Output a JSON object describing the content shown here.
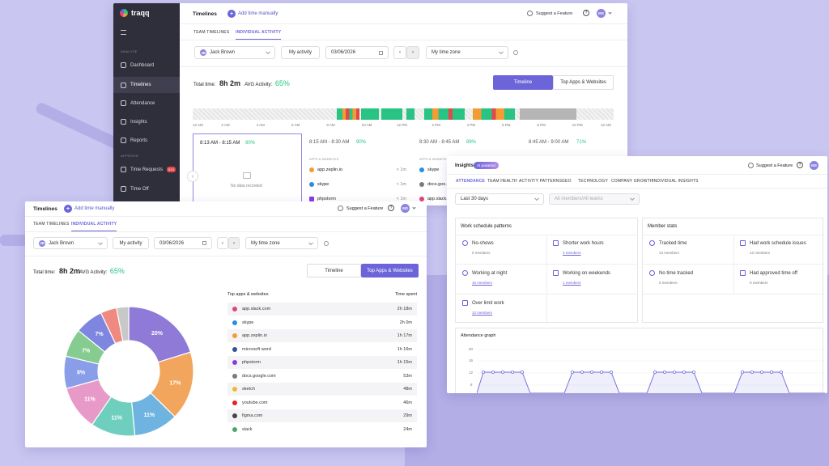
{
  "colors": {
    "accent": "#6c65d9",
    "green": "#29c384",
    "sidebar": "#2f2f3b",
    "background": "#c9c6f1"
  },
  "back": {
    "brand": "traqq",
    "header": {
      "title": "Timelines",
      "add_time": "Add time manually",
      "suggest": "Suggest a Feature",
      "avatar": "MS"
    },
    "sidebar": {
      "section_analyze": "ANALYZE",
      "section_approve": "APPROVE",
      "items": [
        {
          "label": "Dashboard",
          "icon": "dashboard-icon"
        },
        {
          "label": "Timelines",
          "icon": "timelines-icon"
        },
        {
          "label": "Attendance",
          "icon": "attendance-icon"
        },
        {
          "label": "Insights",
          "icon": "insights-icon"
        },
        {
          "label": "Reports",
          "icon": "reports-icon"
        },
        {
          "label": "Time Requests",
          "icon": "time-requests-icon",
          "badge": "574"
        },
        {
          "label": "Time Off",
          "icon": "time-off-icon"
        }
      ]
    },
    "tabs": [
      "TEAM TIMELINES",
      "INDIVIDUAL ACTIVITY"
    ],
    "filters": {
      "avatar": "JB",
      "user": "Jack Brown",
      "my_activity": "My activity",
      "date": "03/06/2026",
      "timezone": "My time zone"
    },
    "totals": {
      "total_label": "Total time:",
      "total_value": "8h 2m",
      "avg_label": "AVG Activity:",
      "avg_value": "65%"
    },
    "view_buttons": {
      "timeline": "Timeline",
      "apps": "Top Apps & Websites"
    },
    "hours": [
      "12 AM",
      "2 AM",
      "4 AM",
      "6 AM",
      "8 AM",
      "10 AM",
      "12 PM",
      "2 PM",
      "4 PM",
      "6 PM",
      "8 PM",
      "10 PM",
      "12 AM"
    ],
    "slots": [
      {
        "time": "8:13 AM - 8:15 AM",
        "pct": "90%",
        "empty": "No data recorded"
      },
      {
        "time": "8:15 AM - 8:30 AM",
        "pct": "90%"
      },
      {
        "time": "8:30 AM - 8:45 AM",
        "pct": "89%"
      },
      {
        "time": "8:45 AM - 9:00 AM",
        "pct": "71%"
      }
    ],
    "apps_used_label": "APPS & WEBSITES",
    "apps_used": [
      {
        "name": "app.zeplin.io",
        "time": "< 1m"
      },
      {
        "name": "skype",
        "time": "< 1m"
      },
      {
        "name": "phpstorm",
        "time": "< 1m"
      }
    ],
    "apps_used_col3": [
      {
        "name": "skype"
      },
      {
        "name": "docs.goo..."
      },
      {
        "name": "app.slack..."
      }
    ]
  },
  "insights": {
    "title": "Insights",
    "badge": "AI powered",
    "suggest": "Suggest a Feature",
    "avatar": "MS",
    "tabs": [
      "ATTENDANCE",
      "TEAM HEALTH",
      "ACTIVITY PATTERNS",
      "GEO",
      "TECHNOLOGY",
      "COMPANY GROWTH",
      "INDIVIDUAL INSIGHTS"
    ],
    "period": "Last 30 days",
    "members_placeholder": "All members/All teams",
    "patterns_title": "Work schedule patterns",
    "patterns": [
      {
        "name": "No-shows",
        "sub": "0 members"
      },
      {
        "name": "Shorter work hours",
        "sub": "3 members"
      },
      {
        "name": "Working at night",
        "sub": "15 members"
      },
      {
        "name": "Working on weekends",
        "sub": "1 members"
      },
      {
        "name": "Over limit work",
        "sub": "12 members"
      }
    ],
    "stats_title": "Member stats",
    "stats": [
      {
        "name": "Tracked time",
        "sub": "13 members"
      },
      {
        "name": "Had work schedule issues",
        "sub": "12 members"
      },
      {
        "name": "No time tracked",
        "sub": "0 members"
      },
      {
        "name": "Had approved time off",
        "sub": "0 members"
      }
    ],
    "graph_title": "Attendance graph",
    "graph_ticks": [
      "20",
      "16",
      "12",
      "8"
    ]
  },
  "front": {
    "header": {
      "title": "Timelines",
      "add_time": "Add time manually",
      "suggest": "Suggest a Feature",
      "avatar": "MS"
    },
    "tabs": [
      "TEAM TIMELINES",
      "INDIVIDUAL ACTIVITY"
    ],
    "filters": {
      "avatar": "JB",
      "user": "Jack Brown",
      "my_activity": "My activity",
      "date": "03/06/2026",
      "timezone": "My time zone"
    },
    "totals": {
      "total_label": "Total time:",
      "total_value": "8h 2m",
      "avg_label": "AVG Activity:",
      "avg_value": "65%"
    },
    "view_buttons": {
      "timeline": "Timeline",
      "apps": "Top Apps & Websites"
    },
    "table": {
      "col_name": "Top apps & websites",
      "col_time": "Time spent",
      "rows": [
        {
          "name": "app.slack.com",
          "time": "2h 18m",
          "color": "#e0457b"
        },
        {
          "name": "skype",
          "time": "2h 0m",
          "color": "#2a8de0"
        },
        {
          "name": "app.zeplin.io",
          "time": "1h 17m",
          "color": "#f39c34"
        },
        {
          "name": "microsoft word",
          "time": "1h 16m",
          "color": "#2b5797"
        },
        {
          "name": "phpstorm",
          "time": "1h 15m",
          "color": "#8a3be0"
        },
        {
          "name": "docs.google.com",
          "time": "53m",
          "color": "#7a7a7a"
        },
        {
          "name": "sketch",
          "time": "48m",
          "color": "#f5b62a"
        },
        {
          "name": "youtube.com",
          "time": "46m",
          "color": "#e62222"
        },
        {
          "name": "figma.com",
          "time": "29m",
          "color": "#444444"
        },
        {
          "name": "slack",
          "time": "24m",
          "color": "#4aa86b"
        }
      ]
    }
  },
  "chart_data": {
    "type": "pie",
    "donut": true,
    "values": [
      20,
      17,
      11,
      11,
      11,
      8,
      7,
      7,
      4,
      3
    ],
    "labels": [
      "20%",
      "17%",
      "11%",
      "11%",
      "11%",
      "8%",
      "7%",
      "7%",
      "",
      ""
    ],
    "colors": [
      "#8f7ad8",
      "#f2a55c",
      "#6fb4e0",
      "#6fcfbf",
      "#e79ac8",
      "#8a9de8",
      "#86cc90",
      "#7e86e0",
      "#f08a80",
      "#c8c8c8"
    ]
  }
}
